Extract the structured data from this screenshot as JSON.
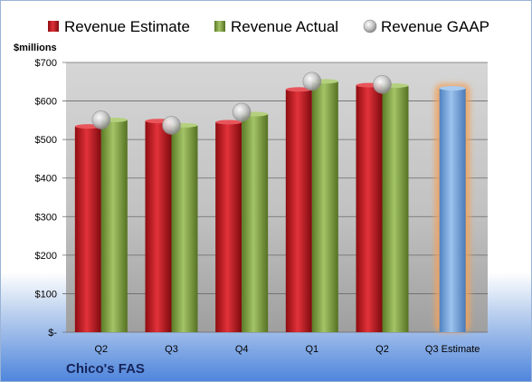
{
  "company": "Chico's FAS",
  "chart_data": {
    "type": "bar",
    "unit_label": "$millions",
    "categories": [
      "Q2",
      "Q3",
      "Q4",
      "Q1",
      "Q2",
      "Q3 Estimate"
    ],
    "series": [
      {
        "name": "Revenue Estimate",
        "color": "#c0131a",
        "values": [
          534,
          548,
          545,
          630,
          641,
          null
        ]
      },
      {
        "name": "Revenue Actual",
        "color": "#7a9a3a",
        "values": [
          551,
          537,
          566,
          651,
          640,
          null
        ]
      },
      {
        "name": "Revenue GAAP",
        "color": "#b7b7b7",
        "marker": "sphere",
        "values": [
          551,
          537,
          571,
          651,
          643,
          null
        ]
      }
    ],
    "estimate": {
      "category": "Q3 Estimate",
      "value": 633,
      "color": "#6e9fd6",
      "highlight": "#f2a35b"
    },
    "yticks": [
      {
        "value": 0,
        "label": "$-"
      },
      {
        "value": 100,
        "label": "$100"
      },
      {
        "value": 200,
        "label": "$200"
      },
      {
        "value": 300,
        "label": "$300"
      },
      {
        "value": 400,
        "label": "$400"
      },
      {
        "value": 500,
        "label": "$500"
      },
      {
        "value": 600,
        "label": "$600"
      },
      {
        "value": 700,
        "label": "$700"
      }
    ],
    "ylim": [
      0,
      700
    ],
    "grid": true,
    "legend": "top"
  }
}
